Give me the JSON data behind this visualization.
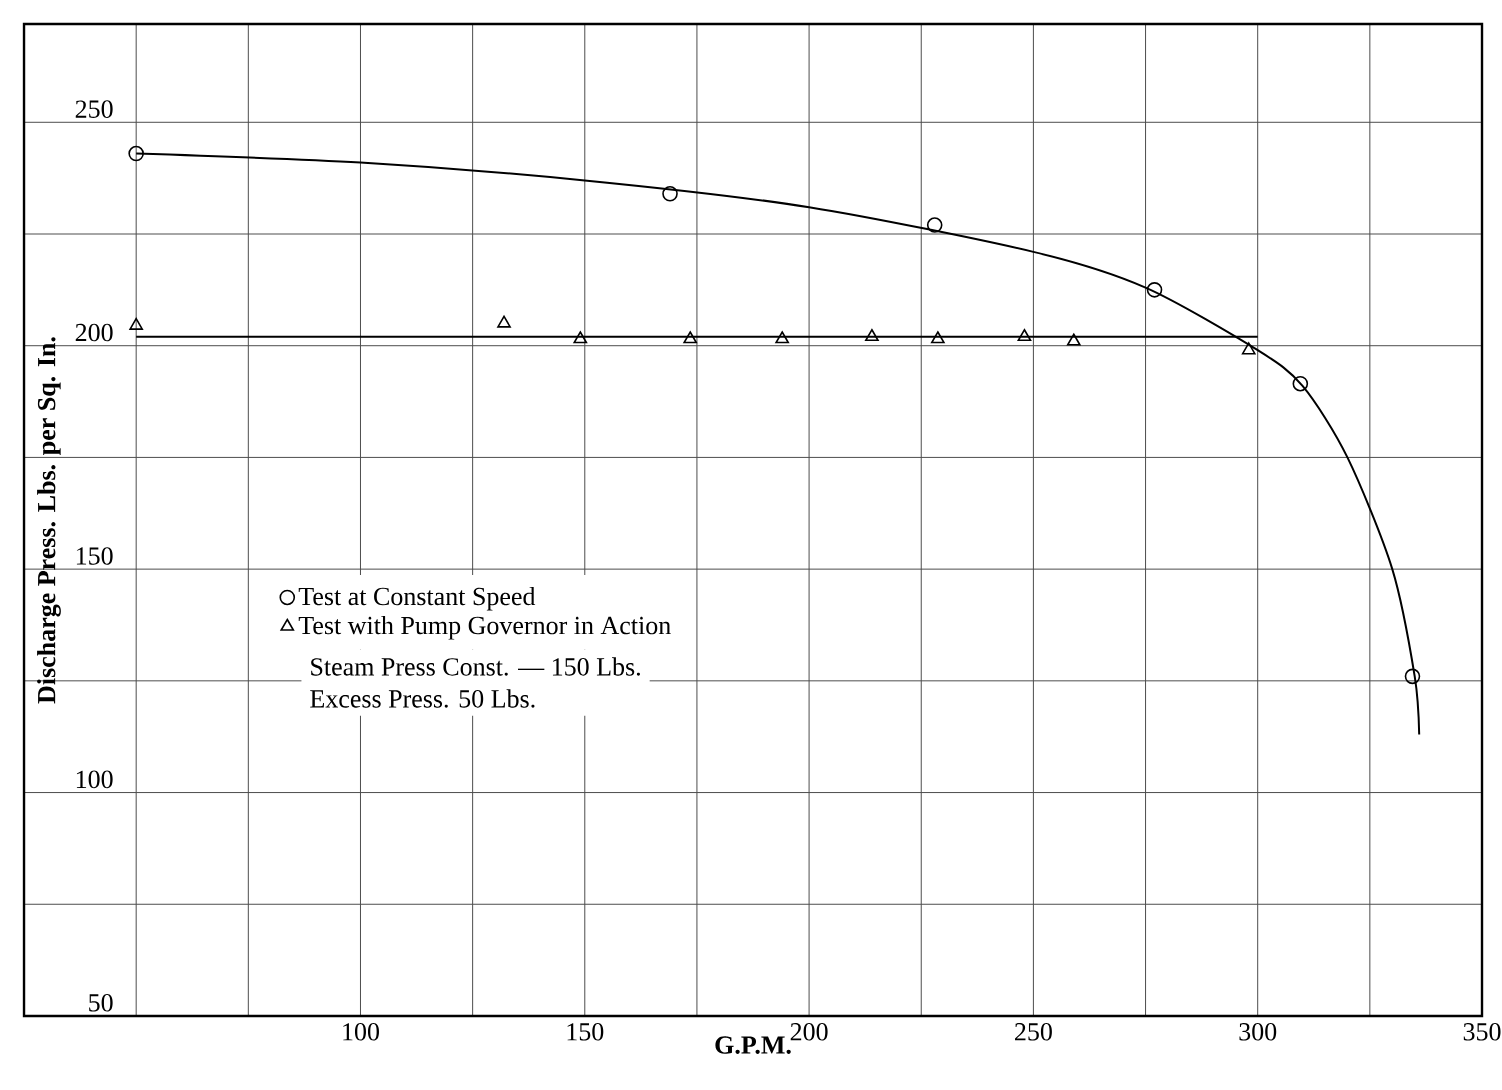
{
  "chart_data": {
    "type": "scatter",
    "xlabel": "G.P.M.",
    "ylabel": "Discharge Press. Lbs. per Sq. In.",
    "xlim": [
      25,
      350
    ],
    "ylim": [
      50,
      272
    ],
    "xticks": [
      {
        "value": 50,
        "label": null
      },
      {
        "value": 75,
        "label": null
      },
      100,
      {
        "value": 125,
        "label": null
      },
      150,
      {
        "value": 175,
        "label": null
      },
      200,
      {
        "value": 225,
        "label": null
      },
      250,
      {
        "value": 275,
        "label": null
      },
      300,
      {
        "value": 325,
        "label": null
      },
      350
    ],
    "yticks": [
      50,
      {
        "value": 75,
        "label": null
      },
      100,
      {
        "value": 125,
        "label": null
      },
      150,
      {
        "value": 175,
        "label": null
      },
      200,
      {
        "value": 225,
        "label": null
      },
      250
    ],
    "grid": true,
    "legend": "left",
    "series": [
      {
        "name": "Test at Constant Speed",
        "marker": "circle",
        "color": "#000000",
        "x": [
          50,
          169,
          228,
          277,
          309.5,
          334.5
        ],
        "values": [
          243,
          234,
          227,
          212.5,
          191.5,
          126
        ]
      },
      {
        "type": "line",
        "marker": "none",
        "color": "#000000",
        "x": [
          50,
          100,
          150,
          200,
          250,
          275,
          300,
          310,
          320,
          330,
          335,
          336
        ],
        "values": [
          243,
          241,
          237,
          231,
          221,
          213,
          199,
          191,
          175,
          150,
          126,
          113
        ]
      },
      {
        "name": "Test with Pump Governor in Action",
        "marker": "triangle",
        "color": "#000000",
        "x": [
          50,
          132,
          149,
          173.5,
          194,
          214,
          228.7,
          248,
          259,
          298
        ],
        "values": [
          204.5,
          205,
          201.5,
          201.5,
          201.5,
          202,
          201.5,
          202,
          201,
          199
        ]
      },
      {
        "type": "line",
        "marker": "none",
        "color": "#000000",
        "x": [
          50,
          300
        ],
        "values": [
          202,
          202
        ]
      }
    ],
    "annotations": [
      "Steam Press Const. — 150 Lbs.",
      "Excess Press. 50 Lbs."
    ]
  }
}
